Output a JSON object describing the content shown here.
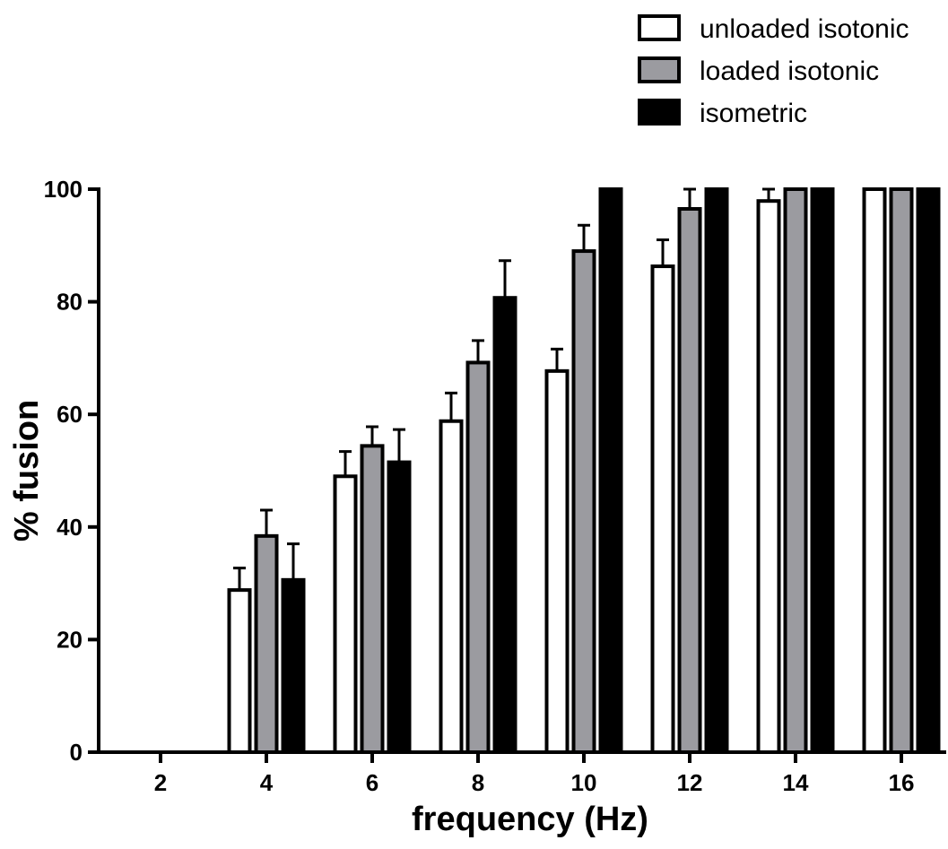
{
  "chart_data": {
    "type": "bar",
    "title": "",
    "xlabel": "frequency (Hz)",
    "ylabel": "% fusion",
    "ylim": [
      0,
      100
    ],
    "yticks": [
      0,
      20,
      40,
      60,
      80,
      100
    ],
    "categories": [
      "2",
      "4",
      "6",
      "8",
      "10",
      "12",
      "14",
      "16"
    ],
    "legend_position": "top-right",
    "grid": false,
    "series": [
      {
        "name": "unloaded isotonic",
        "color": "#ffffff",
        "values": [
          0,
          28.8,
          49.0,
          58.8,
          67.7,
          86.3,
          97.9,
          100
        ],
        "errors": [
          0,
          3.9,
          4.4,
          5.0,
          3.9,
          4.7,
          2.1,
          0
        ]
      },
      {
        "name": "loaded isotonic",
        "color": "#9b9ba0",
        "values": [
          0,
          38.4,
          54.4,
          69.2,
          89.0,
          96.5,
          100,
          100
        ],
        "errors": [
          0,
          4.6,
          3.4,
          3.9,
          4.6,
          3.5,
          0,
          0
        ]
      },
      {
        "name": "isometric",
        "color": "#000000",
        "values": [
          0,
          30.6,
          51.5,
          80.7,
          100,
          100,
          100,
          100
        ],
        "errors": [
          0,
          6.4,
          5.8,
          6.6,
          0,
          0,
          0,
          0
        ]
      }
    ]
  }
}
